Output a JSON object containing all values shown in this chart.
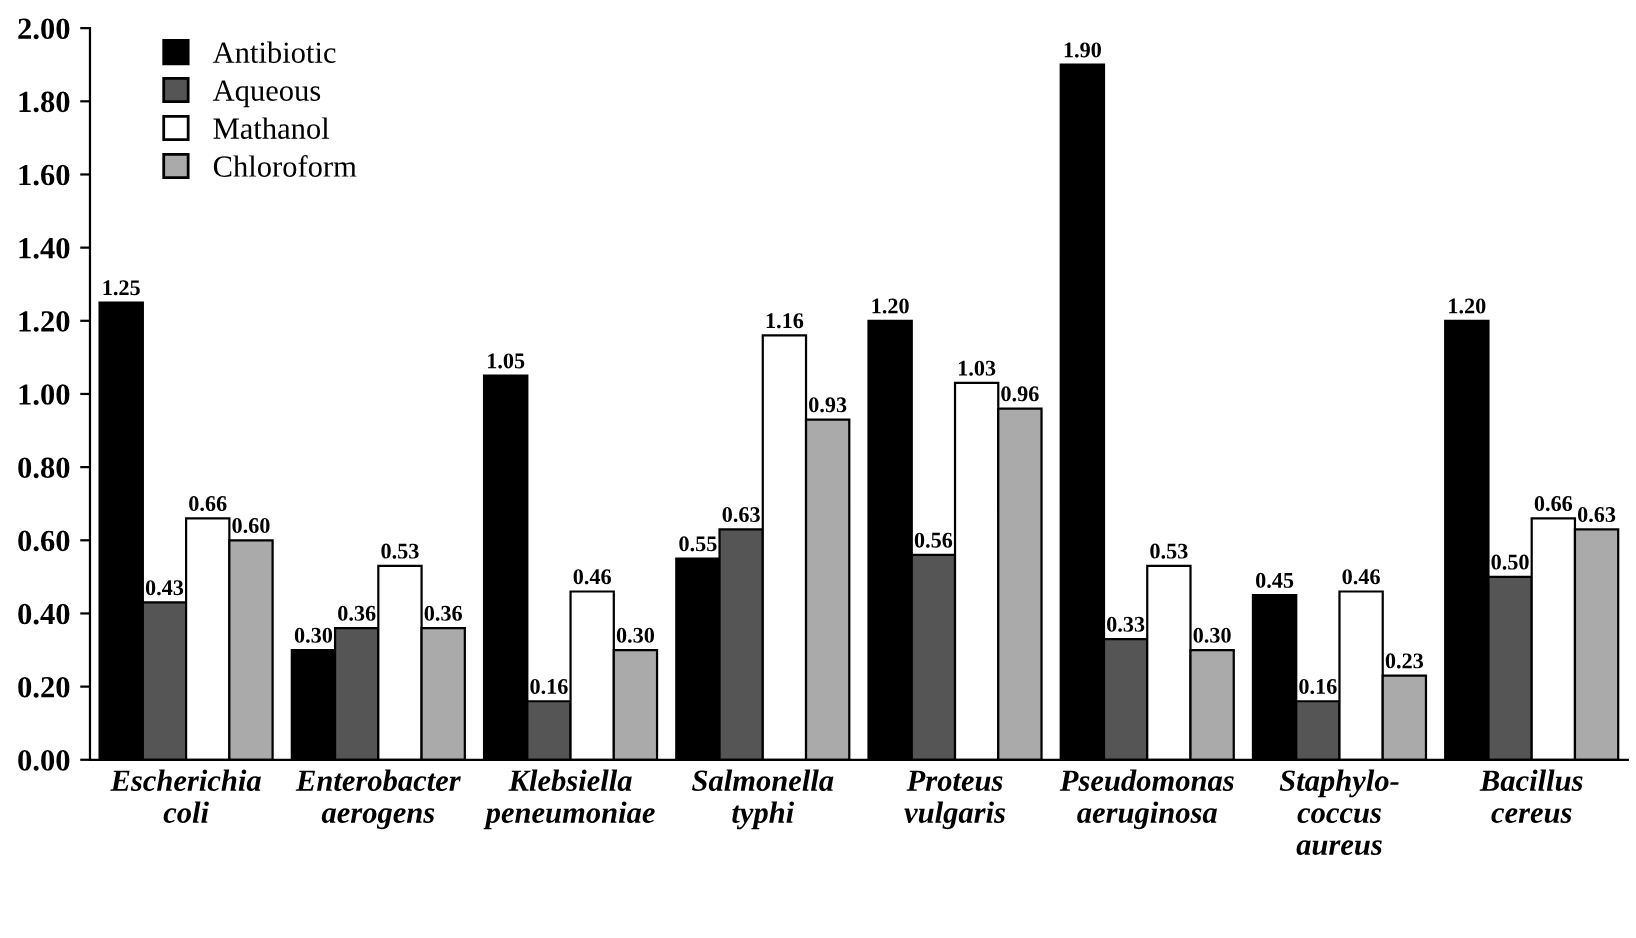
{
  "chart_data": {
    "type": "bar",
    "categories": [
      "Escherichia\ncoli",
      "Enterobacter\naerogens",
      "Klebsiella\npeneumoniae",
      "Salmonella\ntyphi",
      "Proteus\nvulgaris",
      "Pseudomonas\naeruginosa",
      "Staphylo-\ncoccus\naureus",
      "Bacillus\ncereus"
    ],
    "series": [
      {
        "name": "Antibiotic",
        "color": "#000000",
        "values": [
          1.25,
          0.3,
          1.05,
          0.55,
          1.2,
          1.9,
          0.45,
          1.2
        ],
        "value_labels": [
          "1.25",
          "0.30",
          "1.05",
          "0.55",
          "1.20",
          "1.90",
          "0.45",
          "1.20"
        ]
      },
      {
        "name": "Aqueous",
        "color": "#555555",
        "values": [
          0.43,
          0.36,
          0.16,
          0.63,
          0.56,
          0.33,
          0.16,
          0.5
        ],
        "value_labels": [
          "0.43",
          "0.36",
          "0.16",
          "0.63",
          "0.56",
          "0.33",
          "0.16",
          "0.50"
        ]
      },
      {
        "name": "Mathanol",
        "color": "#ffffff",
        "values": [
          0.66,
          0.53,
          0.46,
          1.16,
          1.03,
          0.53,
          0.46,
          0.66
        ],
        "value_labels": [
          "0.66",
          "0.53",
          "0.46",
          "1.16",
          "1.03",
          "0.53",
          "0.46",
          "0.66"
        ]
      },
      {
        "name": "Chloroform",
        "color": "#aaaaaa",
        "values": [
          0.6,
          0.36,
          0.3,
          0.93,
          0.96,
          0.3,
          0.23,
          0.63
        ],
        "value_labels": [
          "0.60",
          "0.36",
          "0.30",
          "0.93",
          "0.96",
          "0.30",
          "0.23",
          "0.63"
        ]
      }
    ],
    "ylim": [
      0,
      2.0
    ],
    "yticks": [
      {
        "value": 0,
        "label": "0.00"
      },
      {
        "value": 0.2,
        "label": "0.20"
      },
      {
        "value": 0.4,
        "label": "0.40"
      },
      {
        "value": 0.6,
        "label": "0.60"
      },
      {
        "value": 0.8,
        "label": "0.80"
      },
      {
        "value": 1.0,
        "label": "1.00"
      },
      {
        "value": 1.2,
        "label": "1.20"
      },
      {
        "value": 1.4,
        "label": "1.40"
      },
      {
        "value": 1.6,
        "label": "1.60"
      },
      {
        "value": 1.8,
        "label": "1.80"
      },
      {
        "value": 2.0,
        "label": "2.00"
      }
    ],
    "grid": false,
    "legend": "top left"
  }
}
